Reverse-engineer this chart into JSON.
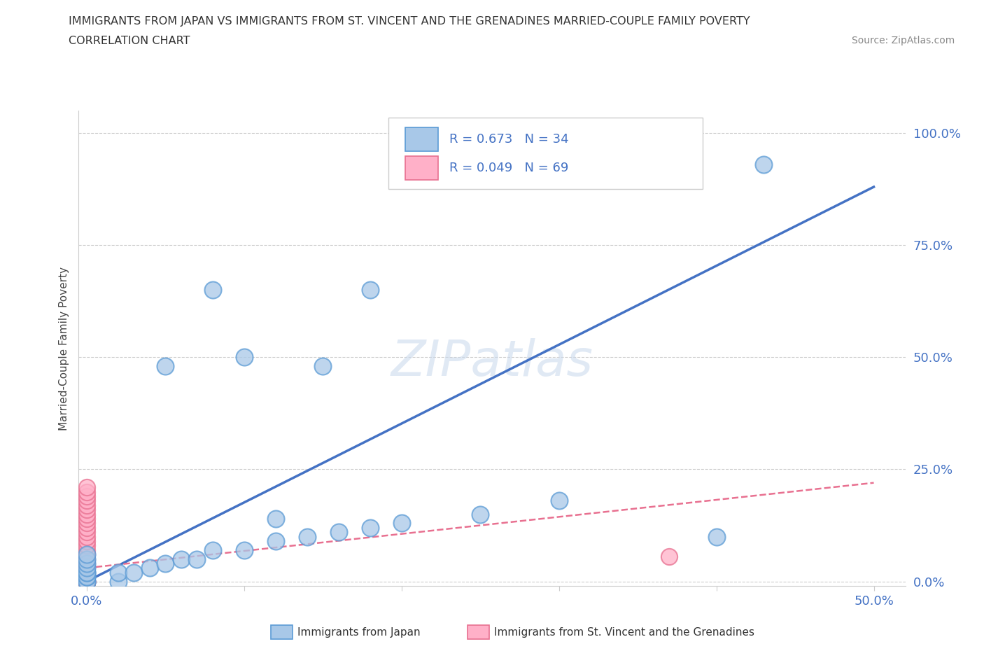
{
  "title_line1": "IMMIGRANTS FROM JAPAN VS IMMIGRANTS FROM ST. VINCENT AND THE GRENADINES MARRIED-COUPLE FAMILY POVERTY",
  "title_line2": "CORRELATION CHART",
  "source_text": "Source: ZipAtlas.com",
  "ylabel": "Married-Couple Family Poverty",
  "xlim": [
    -0.005,
    0.52
  ],
  "ylim": [
    -0.01,
    1.05
  ],
  "ytick_labels": [
    "0.0%",
    "25.0%",
    "50.0%",
    "75.0%",
    "100.0%"
  ],
  "ytick_values": [
    0.0,
    0.25,
    0.5,
    0.75,
    1.0
  ],
  "xtick_labels": [
    "0.0%",
    "",
    "",
    "",
    "",
    "50.0%"
  ],
  "xtick_values": [
    0.0,
    0.1,
    0.2,
    0.3,
    0.4,
    0.5
  ],
  "japan_R": 0.673,
  "japan_N": 34,
  "japan_color": "#a8c8e8",
  "japan_edge_color": "#5b9bd5",
  "svg_color": "#ffb0c8",
  "svg_edge_color": "#e87090",
  "svg_R": 0.049,
  "svg_N": 69,
  "japan_x": [
    0.0,
    0.0,
    0.0,
    0.0,
    0.0,
    0.0,
    0.0,
    0.0,
    0.0,
    0.0,
    0.02,
    0.02,
    0.03,
    0.04,
    0.05,
    0.06,
    0.07,
    0.08,
    0.1,
    0.12,
    0.14,
    0.16,
    0.18,
    0.2,
    0.25,
    0.3,
    0.05,
    0.08,
    0.1,
    0.12,
    0.15,
    0.18,
    0.4,
    0.43
  ],
  "japan_y": [
    0.0,
    0.0,
    0.01,
    0.01,
    0.02,
    0.02,
    0.03,
    0.04,
    0.05,
    0.06,
    0.0,
    0.02,
    0.02,
    0.03,
    0.04,
    0.05,
    0.05,
    0.07,
    0.07,
    0.09,
    0.1,
    0.11,
    0.12,
    0.13,
    0.15,
    0.18,
    0.48,
    0.65,
    0.5,
    0.14,
    0.48,
    0.65,
    0.1,
    0.93
  ],
  "svg_x": [
    0.0,
    0.0,
    0.0,
    0.0,
    0.0,
    0.0,
    0.0,
    0.0,
    0.0,
    0.0,
    0.0,
    0.0,
    0.0,
    0.0,
    0.0,
    0.0,
    0.0,
    0.0,
    0.0,
    0.0,
    0.0,
    0.0,
    0.0,
    0.0,
    0.0,
    0.0,
    0.0,
    0.0,
    0.0,
    0.0,
    0.0,
    0.0,
    0.0,
    0.0,
    0.0,
    0.0,
    0.0,
    0.0,
    0.0,
    0.0,
    0.0,
    0.0,
    0.0,
    0.0,
    0.0,
    0.0,
    0.0,
    0.0,
    0.0,
    0.0,
    0.0,
    0.0,
    0.0,
    0.0,
    0.0,
    0.0,
    0.0,
    0.0,
    0.0,
    0.0,
    0.0,
    0.0,
    0.0,
    0.0,
    0.0,
    0.0,
    0.0,
    0.0,
    0.37
  ],
  "svg_y": [
    0.0,
    0.0,
    0.0,
    0.0,
    0.0,
    0.0,
    0.0,
    0.0,
    0.0,
    0.0,
    0.0,
    0.0,
    0.0,
    0.0,
    0.0,
    0.0,
    0.0,
    0.0,
    0.0,
    0.0,
    0.02,
    0.03,
    0.04,
    0.05,
    0.06,
    0.07,
    0.08,
    0.09,
    0.1,
    0.11,
    0.12,
    0.13,
    0.14,
    0.15,
    0.16,
    0.17,
    0.18,
    0.19,
    0.2,
    0.21,
    0.0,
    0.0,
    0.0,
    0.0,
    0.0,
    0.0,
    0.0,
    0.0,
    0.0,
    0.0,
    0.0,
    0.0,
    0.0,
    0.0,
    0.0,
    0.0,
    0.0,
    0.0,
    0.0,
    0.0,
    0.0,
    0.0,
    0.0,
    0.0,
    0.0,
    0.0,
    0.0,
    0.0,
    0.055
  ],
  "japan_line_x": [
    0.0,
    0.5
  ],
  "japan_line_y": [
    0.0,
    0.88
  ],
  "svg_line_x": [
    0.0,
    0.5
  ],
  "svg_line_y": [
    0.03,
    0.22
  ],
  "watermark": "ZIPatlas",
  "legend_japan_label": "Immigrants from Japan",
  "legend_svg_label": "Immigrants from St. Vincent and the Grenadines",
  "background_color": "#ffffff",
  "grid_color": "#cccccc"
}
